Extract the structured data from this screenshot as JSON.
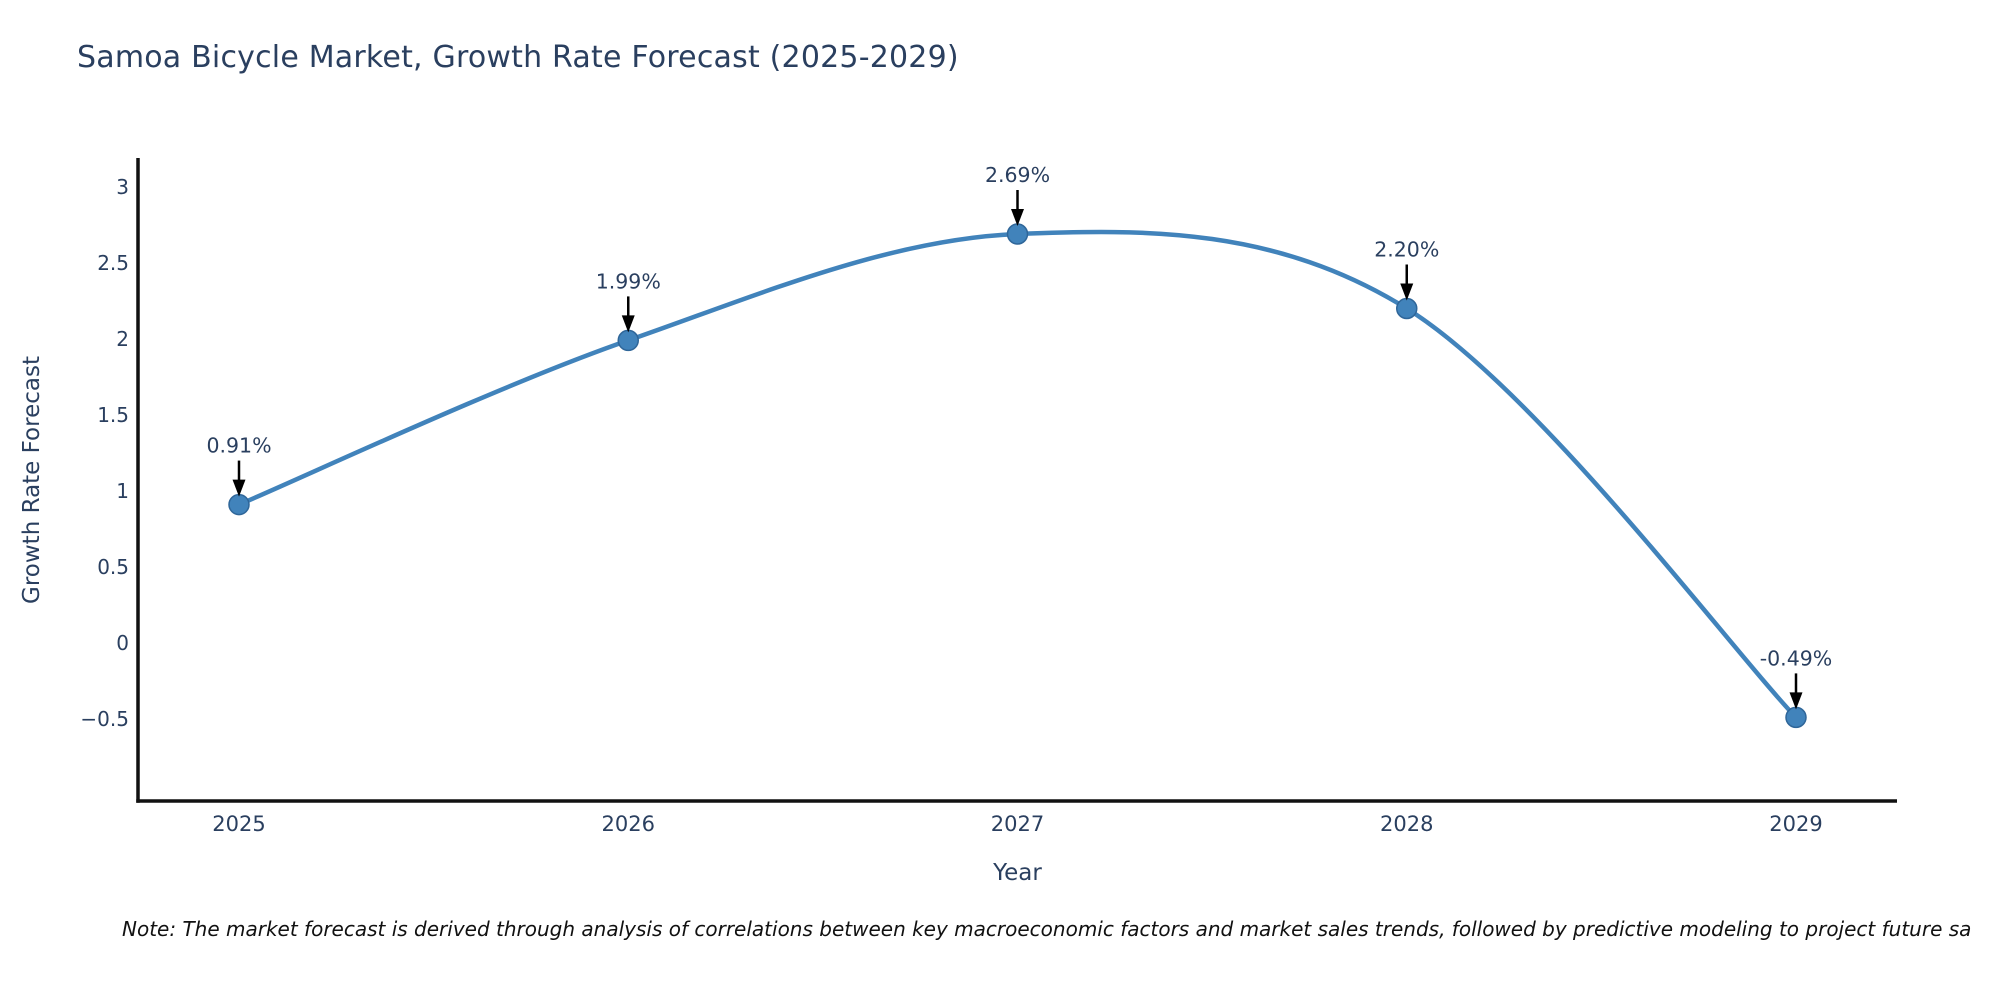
{
  "colors": {
    "background": "#ffffff",
    "text": "#2a3f5f",
    "axis_line": "#111111",
    "line": "#4183bb",
    "marker": "#4183bb",
    "marker_border": "#2f6699",
    "arrow": "#000000",
    "note_text": "#111111"
  },
  "footnote": "Note: The market forecast is derived through analysis of correlations between key macroeconomic factors and market sales trends, followed by predictive modeling to project future sa",
  "chart_data": {
    "type": "line",
    "title": "Samoa Bicycle Market, Growth Rate Forecast (2025-2029)",
    "xlabel": "Year",
    "ylabel": "Growth Rate Forecast",
    "categories": [
      "2025",
      "2026",
      "2027",
      "2028",
      "2029"
    ],
    "values": [
      0.91,
      1.99,
      2.69,
      2.2,
      -0.49
    ],
    "point_labels": [
      "0.91%",
      "1.99%",
      "2.69%",
      "2.20%",
      "-0.49%"
    ],
    "series_name": "Growth Rate Forecast",
    "line_shape": "spline",
    "grid": false,
    "legend": "none",
    "y_ticks": [
      3,
      2.5,
      2,
      1.5,
      1,
      0.5,
      0,
      -0.5
    ],
    "y_tick_labels": [
      "3",
      "2.5",
      "2",
      "1.5",
      "1",
      "0.5",
      "0",
      "−0.5"
    ],
    "ylim": [
      -1.04,
      3.19
    ],
    "annotation_style": "value label with downward black arrow onto each point"
  }
}
